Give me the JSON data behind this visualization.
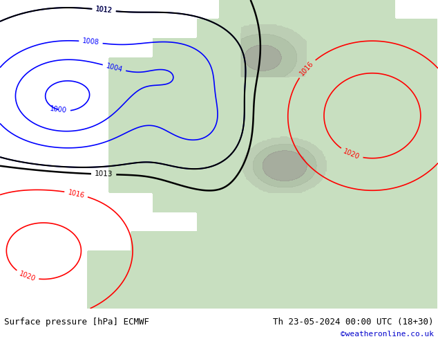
{
  "title_left": "Surface pressure [hPa] ECMWF",
  "title_right": "Th 23-05-2024 00:00 UTC (18+30)",
  "credit": "©weatheronline.co.uk",
  "sea_color": "#c5dff0",
  "land_color": "#c8dfc0",
  "mountain_colors": [
    "#b8c8b0",
    "#a8b8a0",
    "#989890"
  ],
  "fig_width": 6.34,
  "fig_height": 4.9,
  "dpi": 100,
  "bottom_bar_color": "#f0f0f0",
  "font_size_title": 9,
  "font_size_credit": 8,
  "credit_color": "#0000cc",
  "contour_low_color": "blue",
  "contour_high_color": "red",
  "contour_mid_color": "black",
  "contour_linewidth": 1.2,
  "contour_mid_linewidth": 1.8,
  "label_fontsize": 7
}
